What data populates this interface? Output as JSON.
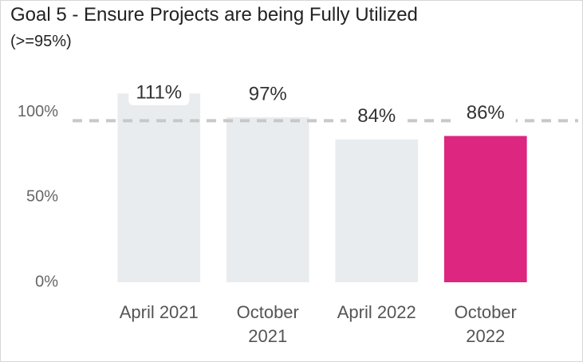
{
  "chart_data": {
    "type": "bar",
    "title": "Goal 5 - Ensure Projects are being Fully Utilized",
    "subtitle": "(>=95%)",
    "categories": [
      "April 2021",
      "October 2021",
      "April 2022",
      "October 2022"
    ],
    "values": [
      111,
      97,
      84,
      86
    ],
    "value_labels": [
      "111%",
      "97%",
      "84%",
      "86%"
    ],
    "colors": [
      "#e9ecef",
      "#e9ecef",
      "#e9ecef",
      "#dc267f"
    ],
    "ylim": [
      0,
      120
    ],
    "yticks": [
      {
        "value": 0,
        "label": "0%"
      },
      {
        "value": 50,
        "label": "50%"
      },
      {
        "value": 100,
        "label": "100%"
      }
    ],
    "reference_line": {
      "value": 95,
      "color": "#c8c8c8"
    },
    "grid": false
  }
}
